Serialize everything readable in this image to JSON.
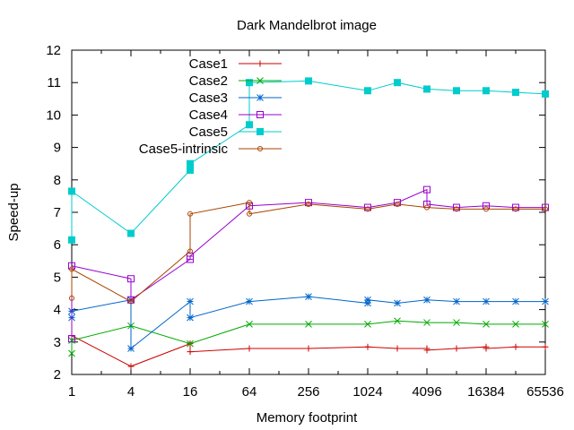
{
  "chart_data": {
    "type": "line",
    "title": "Dark Mandelbrot image",
    "xlabel": "Memory footprint",
    "ylabel": "Speed-up",
    "x_scale": "log2",
    "xlim": [
      1,
      65536
    ],
    "ylim": [
      2,
      12
    ],
    "x_ticks": [
      1,
      4,
      16,
      64,
      256,
      1024,
      4096,
      16384,
      65536
    ],
    "x_tick_labels": [
      "1",
      "4",
      "16",
      "64",
      "256",
      "1024",
      "4096",
      "16384",
      "65536"
    ],
    "y_ticks": [
      2,
      3,
      4,
      5,
      6,
      7,
      8,
      9,
      10,
      11,
      12
    ],
    "grid": false,
    "legend_position": "top-center",
    "series": [
      {
        "name": "Case1",
        "color": "#cc0000",
        "marker": "plus",
        "points": [
          [
            1,
            3.95
          ],
          [
            1,
            3.2
          ],
          [
            4,
            2.25
          ],
          [
            16,
            2.95
          ],
          [
            16,
            2.7
          ],
          [
            64,
            2.8
          ],
          [
            256,
            2.8
          ],
          [
            1024,
            2.85
          ],
          [
            2048,
            2.8
          ],
          [
            4096,
            2.8
          ],
          [
            4096,
            2.75
          ],
          [
            8192,
            2.8
          ],
          [
            16384,
            2.85
          ],
          [
            16384,
            2.8
          ],
          [
            32768,
            2.85
          ],
          [
            65536,
            2.85
          ]
        ]
      },
      {
        "name": "Case2",
        "color": "#00aa00",
        "marker": "cross",
        "points": [
          [
            1,
            2.65
          ],
          [
            1,
            3.05
          ],
          [
            4,
            3.5
          ],
          [
            16,
            2.95
          ],
          [
            64,
            3.55
          ],
          [
            256,
            3.55
          ],
          [
            1024,
            3.55
          ],
          [
            2048,
            3.65
          ],
          [
            4096,
            3.6
          ],
          [
            8192,
            3.6
          ],
          [
            16384,
            3.55
          ],
          [
            32768,
            3.55
          ],
          [
            65536,
            3.55
          ]
        ]
      },
      {
        "name": "Case3",
        "color": "#0066cc",
        "marker": "star",
        "points": [
          [
            1,
            3.75
          ],
          [
            1,
            3.95
          ],
          [
            4,
            4.3
          ],
          [
            4,
            2.8
          ],
          [
            16,
            4.25
          ],
          [
            16,
            3.75
          ],
          [
            64,
            4.25
          ],
          [
            256,
            4.4
          ],
          [
            1024,
            4.2
          ],
          [
            1024,
            4.3
          ],
          [
            2048,
            4.2
          ],
          [
            4096,
            4.3
          ],
          [
            8192,
            4.25
          ],
          [
            16384,
            4.25
          ],
          [
            32768,
            4.25
          ],
          [
            65536,
            4.25
          ]
        ]
      },
      {
        "name": "Case4",
        "color": "#9900cc",
        "marker": "square-open",
        "points": [
          [
            1,
            3.1
          ],
          [
            1,
            5.35
          ],
          [
            4,
            4.95
          ],
          [
            4,
            4.3
          ],
          [
            16,
            5.55
          ],
          [
            16,
            5.65
          ],
          [
            64,
            7.2
          ],
          [
            256,
            7.3
          ],
          [
            1024,
            7.15
          ],
          [
            2048,
            7.3
          ],
          [
            4096,
            7.7
          ],
          [
            4096,
            7.25
          ],
          [
            8192,
            7.15
          ],
          [
            16384,
            7.2
          ],
          [
            32768,
            7.15
          ],
          [
            65536,
            7.15
          ]
        ]
      },
      {
        "name": "Case5",
        "color": "#00cccc",
        "marker": "square-filled",
        "points": [
          [
            1,
            6.15
          ],
          [
            1,
            7.65
          ],
          [
            4,
            6.35
          ],
          [
            16,
            8.3
          ],
          [
            16,
            8.5
          ],
          [
            64,
            9.7
          ],
          [
            64,
            11.0
          ],
          [
            256,
            11.05
          ],
          [
            1024,
            10.75
          ],
          [
            2048,
            11.0
          ],
          [
            4096,
            10.8
          ],
          [
            8192,
            10.75
          ],
          [
            16384,
            10.75
          ],
          [
            32768,
            10.7
          ],
          [
            65536,
            10.65
          ]
        ]
      },
      {
        "name": "Case5-intrinsic",
        "color": "#aa4400",
        "marker": "circle-open",
        "points": [
          [
            1,
            4.35
          ],
          [
            1,
            5.25
          ],
          [
            4,
            4.25
          ],
          [
            16,
            5.8
          ],
          [
            16,
            6.95
          ],
          [
            64,
            7.3
          ],
          [
            64,
            6.95
          ],
          [
            256,
            7.25
          ],
          [
            1024,
            7.1
          ],
          [
            2048,
            7.25
          ],
          [
            4096,
            7.15
          ],
          [
            8192,
            7.1
          ],
          [
            16384,
            7.1
          ],
          [
            32768,
            7.1
          ],
          [
            65536,
            7.1
          ]
        ]
      }
    ]
  }
}
